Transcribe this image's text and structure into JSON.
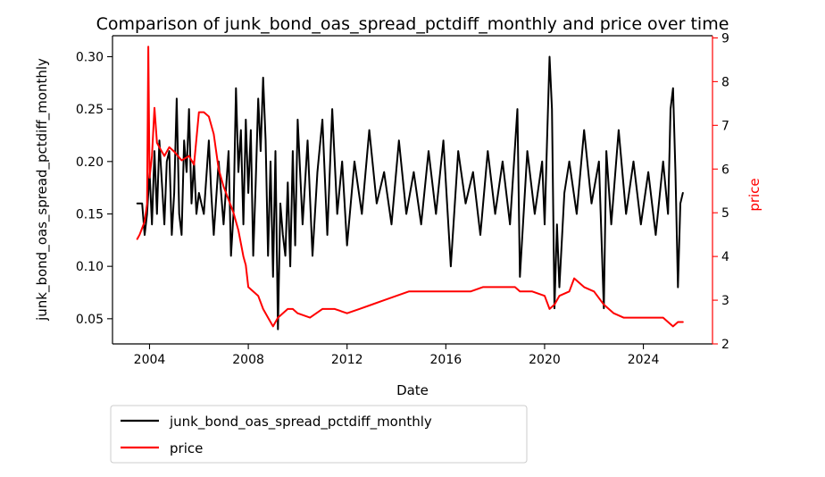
{
  "chart_data": {
    "type": "line",
    "title": "Comparison of junk_bond_oas_spread_pctdiff_monthly and price over time",
    "xlabel": "Date",
    "ylabel_left": "junk_bond_oas_spread_pctdiff_monthly",
    "ylabel_right": "price",
    "xlim": [
      2002.5,
      2026.8
    ],
    "ylim_left": [
      0.026,
      0.32
    ],
    "ylim_right": [
      2.0,
      9.05
    ],
    "x_ticks": [
      {
        "value": 2004,
        "label": "2004"
      },
      {
        "value": 2008,
        "label": "2008"
      },
      {
        "value": 2012,
        "label": "2012"
      },
      {
        "value": 2016,
        "label": "2016"
      },
      {
        "value": 2020,
        "label": "2020"
      },
      {
        "value": 2024,
        "label": "2024"
      }
    ],
    "y_ticks_left": [
      {
        "value": 0.05,
        "label": "0.05"
      },
      {
        "value": 0.1,
        "label": "0.10"
      },
      {
        "value": 0.15,
        "label": "0.15"
      },
      {
        "value": 0.2,
        "label": "0.20"
      },
      {
        "value": 0.25,
        "label": "0.25"
      },
      {
        "value": 0.3,
        "label": "0.30"
      }
    ],
    "y_ticks_right": [
      {
        "value": 2,
        "label": "2"
      },
      {
        "value": 3,
        "label": "3"
      },
      {
        "value": 4,
        "label": "4"
      },
      {
        "value": 5,
        "label": "5"
      },
      {
        "value": 6,
        "label": "6"
      },
      {
        "value": 7,
        "label": "7"
      },
      {
        "value": 8,
        "label": "8"
      },
      {
        "value": 9,
        "label": "9"
      }
    ],
    "grid": false,
    "legend_position": "below-left",
    "series": [
      {
        "name": "junk_bond_oas_spread_pctdiff_monthly",
        "axis": "left",
        "color": "#000000",
        "x": [
          2003.5,
          2003.7,
          2003.8,
          2003.9,
          2004.0,
          2004.1,
          2004.2,
          2004.3,
          2004.4,
          2004.5,
          2004.6,
          2004.7,
          2004.8,
          2004.9,
          2005.0,
          2005.1,
          2005.2,
          2005.3,
          2005.4,
          2005.5,
          2005.6,
          2005.7,
          2005.8,
          2005.9,
          2006.0,
          2006.2,
          2006.4,
          2006.5,
          2006.6,
          2006.8,
          2007.0,
          2007.2,
          2007.3,
          2007.4,
          2007.5,
          2007.6,
          2007.7,
          2007.8,
          2007.9,
          2008.0,
          2008.1,
          2008.2,
          2008.3,
          2008.4,
          2008.5,
          2008.6,
          2008.7,
          2008.8,
          2008.9,
          2009.0,
          2009.1,
          2009.2,
          2009.3,
          2009.4,
          2009.5,
          2009.6,
          2009.7,
          2009.8,
          2009.9,
          2010.0,
          2010.2,
          2010.4,
          2010.6,
          2010.8,
          2011.0,
          2011.2,
          2011.4,
          2011.6,
          2011.8,
          2012.0,
          2012.3,
          2012.6,
          2012.9,
          2013.2,
          2013.5,
          2013.8,
          2014.1,
          2014.4,
          2014.7,
          2015.0,
          2015.3,
          2015.6,
          2015.9,
          2016.2,
          2016.5,
          2016.8,
          2017.1,
          2017.4,
          2017.7,
          2018.0,
          2018.3,
          2018.6,
          2018.9,
          2019.0,
          2019.3,
          2019.6,
          2019.9,
          2020.0,
          2020.1,
          2020.2,
          2020.3,
          2020.4,
          2020.5,
          2020.6,
          2020.8,
          2021.0,
          2021.3,
          2021.6,
          2021.9,
          2022.2,
          2022.4,
          2022.5,
          2022.7,
          2023.0,
          2023.3,
          2023.6,
          2023.9,
          2024.2,
          2024.5,
          2024.8,
          2025.0,
          2025.1,
          2025.2,
          2025.3,
          2025.4,
          2025.5,
          2025.6
        ],
        "y": [
          0.16,
          0.16,
          0.13,
          0.15,
          0.19,
          0.14,
          0.21,
          0.15,
          0.22,
          0.18,
          0.14,
          0.2,
          0.21,
          0.13,
          0.17,
          0.26,
          0.15,
          0.13,
          0.22,
          0.19,
          0.25,
          0.16,
          0.2,
          0.15,
          0.17,
          0.15,
          0.22,
          0.17,
          0.13,
          0.2,
          0.14,
          0.21,
          0.11,
          0.15,
          0.27,
          0.19,
          0.23,
          0.14,
          0.24,
          0.17,
          0.23,
          0.11,
          0.18,
          0.26,
          0.21,
          0.28,
          0.22,
          0.11,
          0.2,
          0.09,
          0.21,
          0.04,
          0.16,
          0.13,
          0.11,
          0.18,
          0.1,
          0.21,
          0.12,
          0.24,
          0.14,
          0.22,
          0.11,
          0.19,
          0.24,
          0.13,
          0.25,
          0.15,
          0.2,
          0.12,
          0.2,
          0.15,
          0.23,
          0.16,
          0.19,
          0.14,
          0.22,
          0.15,
          0.19,
          0.14,
          0.21,
          0.15,
          0.22,
          0.1,
          0.21,
          0.16,
          0.19,
          0.13,
          0.21,
          0.15,
          0.2,
          0.14,
          0.25,
          0.09,
          0.21,
          0.15,
          0.2,
          0.14,
          0.22,
          0.3,
          0.25,
          0.06,
          0.14,
          0.08,
          0.17,
          0.2,
          0.15,
          0.23,
          0.16,
          0.2,
          0.06,
          0.21,
          0.14,
          0.23,
          0.15,
          0.2,
          0.14,
          0.19,
          0.13,
          0.2,
          0.15,
          0.25,
          0.27,
          0.19,
          0.08,
          0.16,
          0.17
        ],
        "legend_label": "junk_bond_oas_spread_pctdiff_monthly"
      },
      {
        "name": "price",
        "axis": "right",
        "color": "#ff0000",
        "x": [
          2003.5,
          2003.6,
          2003.8,
          2003.9,
          2003.95,
          2004.0,
          2004.1,
          2004.2,
          2004.3,
          2004.4,
          2004.6,
          2004.8,
          2005.0,
          2005.3,
          2005.6,
          2005.8,
          2006.0,
          2006.2,
          2006.4,
          2006.6,
          2006.8,
          2007.0,
          2007.2,
          2007.4,
          2007.6,
          2007.8,
          2007.9,
          2008.0,
          2008.2,
          2008.4,
          2008.6,
          2008.8,
          2009.0,
          2009.2,
          2009.4,
          2009.6,
          2009.8,
          2010.0,
          2010.5,
          2011.0,
          2011.5,
          2012.0,
          2012.5,
          2013.0,
          2013.5,
          2014.0,
          2014.5,
          2015.0,
          2015.5,
          2016.0,
          2016.5,
          2017.0,
          2017.5,
          2018.0,
          2018.5,
          2018.8,
          2019.0,
          2019.5,
          2020.0,
          2020.2,
          2020.4,
          2020.6,
          2021.0,
          2021.2,
          2021.6,
          2022.0,
          2022.4,
          2022.8,
          2023.2,
          2023.6,
          2024.0,
          2024.4,
          2024.8,
          2025.0,
          2025.2,
          2025.4,
          2025.6
        ],
        "y": [
          4.4,
          4.5,
          4.8,
          5.2,
          8.8,
          5.8,
          6.3,
          7.4,
          6.6,
          6.5,
          6.3,
          6.5,
          6.4,
          6.2,
          6.3,
          6.1,
          7.3,
          7.3,
          7.2,
          6.8,
          6.0,
          5.6,
          5.3,
          5.0,
          4.6,
          4.0,
          3.8,
          3.3,
          3.2,
          3.1,
          2.8,
          2.6,
          2.4,
          2.6,
          2.7,
          2.8,
          2.8,
          2.7,
          2.6,
          2.8,
          2.8,
          2.7,
          2.8,
          2.9,
          3.0,
          3.1,
          3.2,
          3.2,
          3.2,
          3.2,
          3.2,
          3.2,
          3.3,
          3.3,
          3.3,
          3.3,
          3.2,
          3.2,
          3.1,
          2.8,
          2.9,
          3.1,
          3.2,
          3.5,
          3.3,
          3.2,
          2.9,
          2.7,
          2.6,
          2.6,
          2.6,
          2.6,
          2.6,
          2.5,
          2.4,
          2.5,
          2.5
        ],
        "legend_label": "price"
      }
    ]
  }
}
